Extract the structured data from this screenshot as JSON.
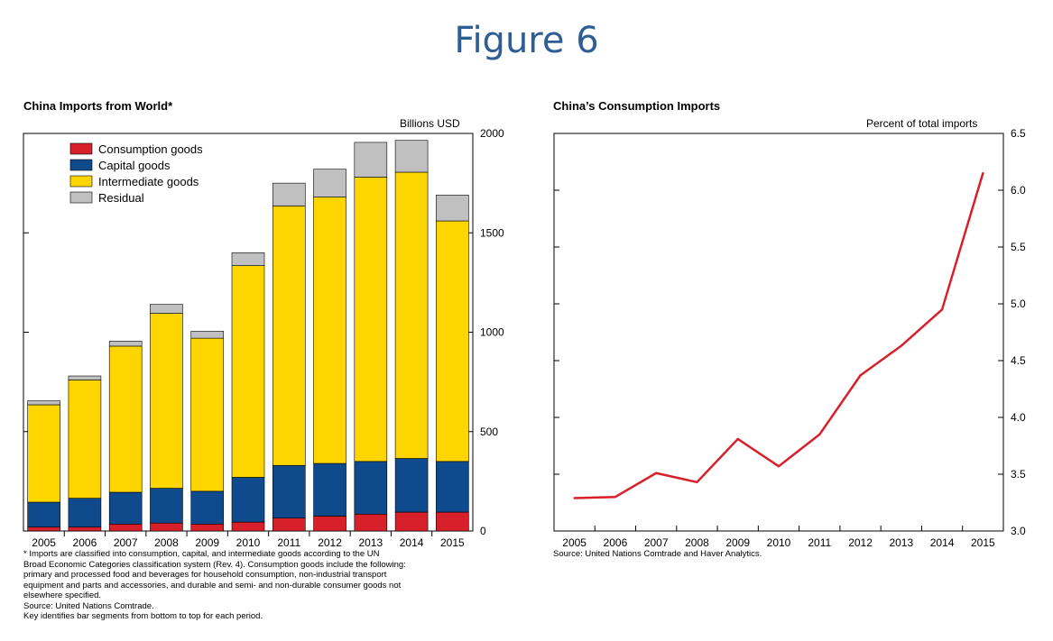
{
  "page": {
    "title": "Figure 6"
  },
  "chart_data": [
    {
      "type": "bar",
      "stacked": true,
      "title": "China Imports from World*",
      "unit_label": "Billions USD",
      "categories": [
        "2005",
        "2006",
        "2007",
        "2008",
        "2009",
        "2010",
        "2011",
        "2012",
        "2013",
        "2014",
        "2015"
      ],
      "ylim": [
        0,
        2000
      ],
      "yticks": [
        "0",
        "500",
        "1000",
        "1500",
        "2000"
      ],
      "series": [
        {
          "name": "Consumption goods",
          "color": "#d7202a",
          "values": [
            20,
            20,
            35,
            40,
            35,
            45,
            65,
            75,
            85,
            95,
            95
          ]
        },
        {
          "name": "Capital goods",
          "color": "#0e4a8c",
          "values": [
            125,
            145,
            160,
            175,
            165,
            225,
            265,
            265,
            265,
            270,
            255
          ]
        },
        {
          "name": "Intermediate goods",
          "color": "#ffd500",
          "values": [
            490,
            595,
            735,
            880,
            770,
            1065,
            1305,
            1340,
            1430,
            1440,
            1210
          ]
        },
        {
          "name": "Residual",
          "color": "#c0c0c0",
          "values": [
            20,
            20,
            25,
            45,
            35,
            65,
            115,
            140,
            175,
            160,
            130
          ]
        }
      ],
      "legend_position": "top-left",
      "footnote": [
        "* Imports are classified into consumption, capital, and intermediate goods according to the UN",
        "Broad Economic Categories classification system (Rev. 4). Consumption goods include the following:",
        "primary and processed food and beverages for household consumption, non-industrial transport",
        "equipment and parts and accessories, and durable and semi- and non-durable consumer goods not",
        "elsewhere specified.",
        "Source: United Nations Comtrade.",
        "Key identifies bar segments from bottom to top for each period."
      ]
    },
    {
      "type": "line",
      "title": "China’s Consumption Imports",
      "unit_label": "Percent of total imports",
      "x": [
        "2005",
        "2006",
        "2007",
        "2008",
        "2009",
        "2010",
        "2011",
        "2012",
        "2013",
        "2014",
        "2015"
      ],
      "ylim": [
        3.0,
        6.5
      ],
      "yticks": [
        "3.0",
        "3.5",
        "4.0",
        "4.5",
        "5.0",
        "5.5",
        "6.0",
        "6.5"
      ],
      "series": [
        {
          "color": "#d7202a",
          "values": [
            3.29,
            3.3,
            3.51,
            3.43,
            3.81,
            3.57,
            3.85,
            4.37,
            4.63,
            4.95,
            6.15
          ]
        }
      ],
      "source": "Source: United Nations Comtrade and Haver Analytics."
    }
  ]
}
